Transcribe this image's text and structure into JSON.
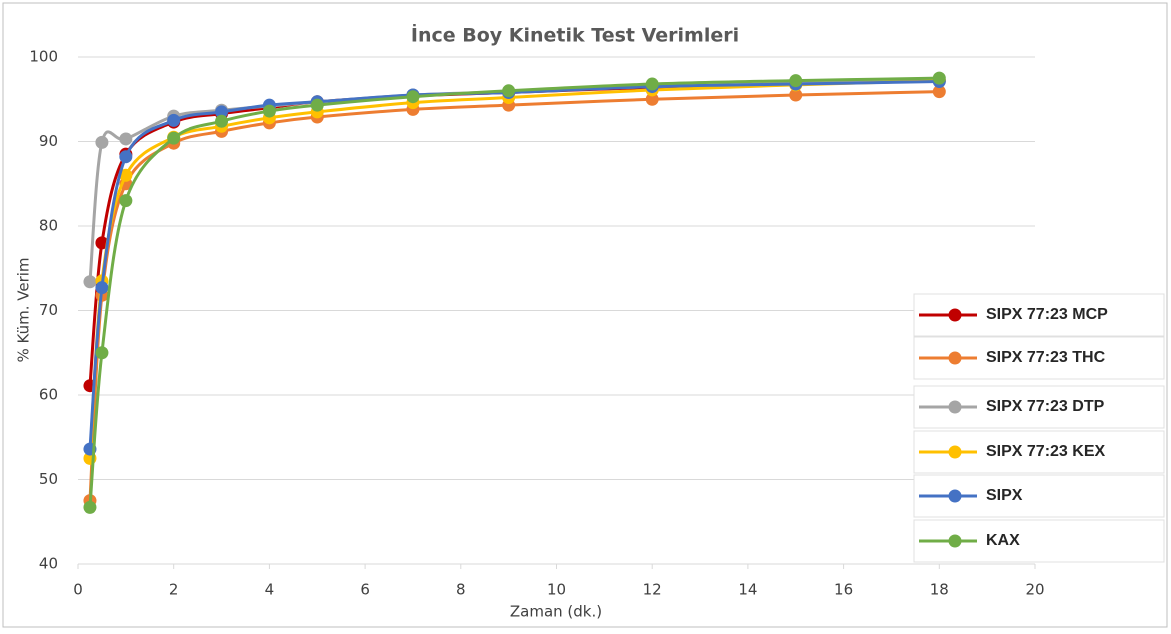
{
  "chart_data": {
    "type": "line",
    "title": "İnce Boy Kinetik Test Verimleri",
    "x_label": "Zaman (dk.)",
    "y_label": "% Küm. Verim",
    "x": [
      0.25,
      0.5,
      1,
      2,
      3,
      4,
      5,
      7,
      9,
      12,
      15,
      18
    ],
    "series": [
      {
        "name": "SIPX 77:23 MCP",
        "color": "#c00000",
        "values": [
          61.1,
          78,
          88.5,
          92.3,
          93.3,
          94,
          94.7,
          95.4,
          95.8,
          96.4,
          96.8,
          97.2
        ]
      },
      {
        "name": "SIPX 77:23 THC",
        "color": "#ed7d31",
        "values": [
          47.5,
          71.8,
          85,
          89.8,
          91.2,
          92.2,
          92.9,
          93.8,
          94.3,
          95,
          95.5,
          95.9
        ]
      },
      {
        "name": "SIPX 77:23 DTP",
        "color": "#a5a5a5",
        "values": [
          73.4,
          89.9,
          90.3,
          93,
          93.7,
          94.2,
          94.7,
          95.5,
          95.9,
          96.5,
          96.9,
          97.2
        ]
      },
      {
        "name": "SIPX 77:23 KEX",
        "color": "#ffc000",
        "values": [
          52.5,
          73.5,
          86,
          90.5,
          91.8,
          92.8,
          93.5,
          94.6,
          95.2,
          96.1,
          96.7,
          97.2
        ]
      },
      {
        "name": "SIPX",
        "color": "#4472c4",
        "values": [
          53.6,
          72.7,
          88.2,
          92.5,
          93.5,
          94.3,
          94.7,
          95.5,
          95.8,
          96.5,
          96.8,
          97.1
        ]
      },
      {
        "name": "KAX",
        "color": "#70ad47",
        "values": [
          46.7,
          65,
          83,
          90.4,
          92.4,
          93.6,
          94.3,
          95.3,
          96,
          96.8,
          97.2,
          97.5
        ]
      }
    ],
    "xlim": [
      0,
      20
    ],
    "xticks": [
      0,
      2,
      4,
      6,
      8,
      10,
      12,
      14,
      16,
      18,
      20
    ],
    "ylim": [
      40,
      100
    ],
    "yticks": [
      40,
      50,
      60,
      70,
      80,
      90,
      100
    ],
    "grid": true,
    "legend": "right"
  }
}
